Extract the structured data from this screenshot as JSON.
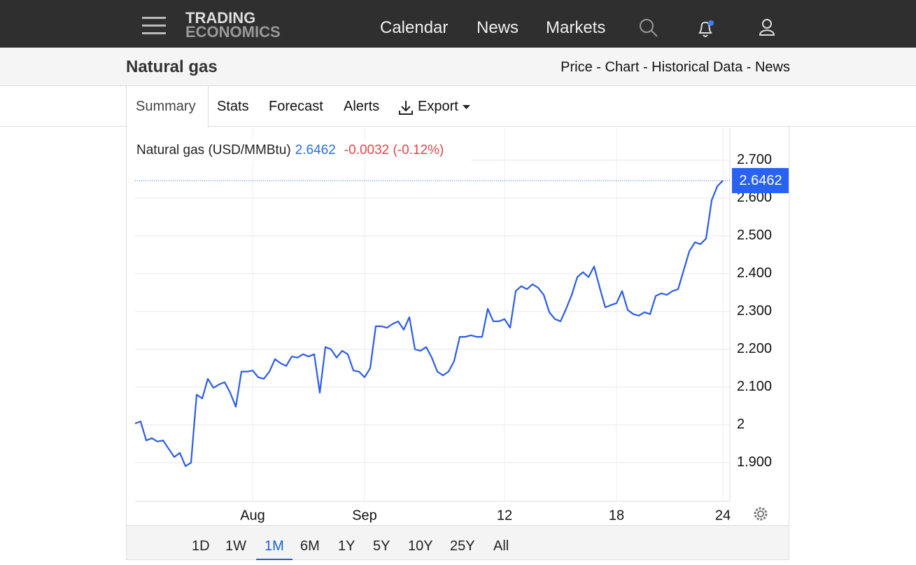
{
  "header": {
    "logo_top": "TRADING",
    "logo_bottom": "ECONOMICS",
    "nav": [
      "Calendar",
      "News",
      "Markets"
    ]
  },
  "subheader": {
    "title": "Natural gas",
    "links": "Price - Chart - Historical Data - News"
  },
  "tabs": [
    "Summary",
    "Stats",
    "Forecast",
    "Alerts"
  ],
  "active_tab": 0,
  "export": "Export",
  "ranges": [
    "1D",
    "1W",
    "1M",
    "6M",
    "1Y",
    "5Y",
    "10Y",
    "25Y",
    "All"
  ],
  "active_range": 2,
  "chart_data": {
    "type": "line",
    "title": "Natural gas (USD/MMBtu)",
    "change": "-0.0032 (-0.12%)",
    "color": "#2b5ce6",
    "categories": [
      null,
      null,
      null,
      null,
      null,
      null,
      null,
      null,
      null,
      null,
      null,
      null,
      null,
      null,
      null,
      null,
      null,
      null,
      null,
      null,
      null,
      "Aug",
      null,
      null,
      null,
      null,
      null,
      null,
      null,
      null,
      null,
      null,
      null,
      null,
      null,
      null,
      null,
      null,
      null,
      null,
      null,
      "Sep",
      null,
      null,
      null,
      null,
      null,
      null,
      null,
      null,
      null,
      null,
      null,
      null,
      null,
      null,
      null,
      null,
      null,
      null,
      null,
      null,
      null,
      null,
      null,
      null,
      "12",
      null,
      null,
      null,
      null,
      null,
      null,
      null,
      null,
      null,
      null,
      null,
      null,
      null,
      null,
      null,
      null,
      null,
      null,
      null,
      "18",
      null,
      null,
      null,
      null,
      null,
      null,
      null,
      null,
      null,
      null,
      null,
      null,
      null,
      null,
      null,
      null,
      null,
      null,
      "24"
    ],
    "values": [
      2.004,
      2.009,
      1.959,
      1.965,
      1.956,
      1.959,
      1.937,
      1.915,
      1.926,
      1.891,
      1.9,
      2.08,
      2.07,
      2.122,
      2.098,
      2.107,
      2.113,
      2.085,
      2.048,
      2.141,
      2.141,
      2.144,
      2.126,
      2.122,
      2.141,
      2.174,
      2.163,
      2.156,
      2.181,
      2.178,
      2.187,
      2.181,
      2.187,
      2.085,
      2.206,
      2.2,
      2.178,
      2.196,
      2.187,
      2.144,
      2.141,
      2.126,
      2.15,
      2.261,
      2.261,
      2.257,
      2.267,
      2.274,
      2.252,
      2.285,
      2.2,
      2.196,
      2.206,
      2.178,
      2.141,
      2.131,
      2.141,
      2.169,
      2.233,
      2.233,
      2.237,
      2.233,
      2.233,
      2.307,
      2.274,
      2.274,
      2.28,
      2.257,
      2.354,
      2.367,
      2.359,
      2.372,
      2.363,
      2.344,
      2.298,
      2.28,
      2.274,
      2.307,
      2.344,
      2.391,
      2.404,
      2.391,
      2.419,
      2.363,
      2.311,
      2.317,
      2.322,
      2.354,
      2.304,
      2.293,
      2.289,
      2.298,
      2.293,
      2.341,
      2.348,
      2.344,
      2.354,
      2.359,
      2.409,
      2.459,
      2.483,
      2.478,
      2.493,
      2.594,
      2.631,
      2.6462
    ],
    "ylim": [
      1.798,
      2.785
    ],
    "yticks": [
      {
        "value": 1.9,
        "label": "1.900"
      },
      2,
      {
        "value": 2.1,
        "label": "2.100"
      },
      {
        "value": 2.2,
        "label": "2.200"
      },
      {
        "value": 2.3,
        "label": "2.300"
      },
      {
        "value": 2.4,
        "label": "2.400"
      },
      {
        "value": 2.5,
        "label": "2.500"
      },
      {
        "value": 2.6,
        "label": "2.600"
      },
      {
        "value": 2.7,
        "label": "2.700"
      }
    ],
    "grid": true
  }
}
